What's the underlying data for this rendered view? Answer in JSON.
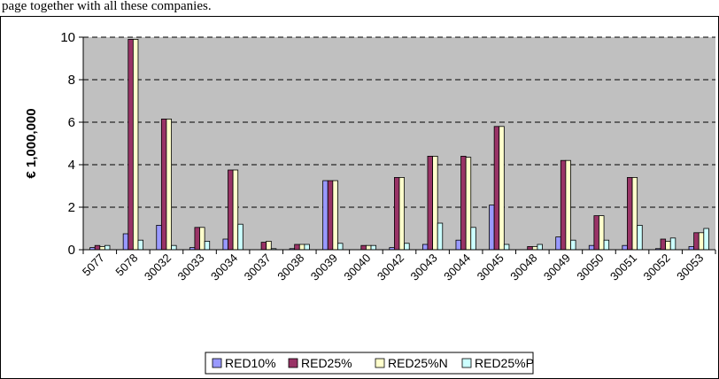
{
  "top_text": "page together with all these companies.",
  "chart_data": {
    "type": "bar",
    "title": "",
    "xlabel": "",
    "ylabel": "€ 1,000,000",
    "ylim": [
      0,
      10
    ],
    "yticks": [
      0,
      2,
      4,
      6,
      8,
      10
    ],
    "grid": true,
    "legend_position": "bottom",
    "categories": [
      "5077",
      "5078",
      "30032",
      "30033",
      "30034",
      "30037",
      "30038",
      "30039",
      "30040",
      "30042",
      "30043",
      "30044",
      "30045",
      "30048",
      "30049",
      "30050",
      "30051",
      "30052",
      "30053"
    ],
    "series": [
      {
        "name": "RED10%",
        "color": "#9999ff",
        "values": [
          0.1,
          0.75,
          1.15,
          0.1,
          0.5,
          0.0,
          0.05,
          3.25,
          0.0,
          0.1,
          0.25,
          0.45,
          2.1,
          0.0,
          0.6,
          0.2,
          0.2,
          0.05,
          0.15
        ]
      },
      {
        "name": "RED25%",
        "color": "#993366",
        "values": [
          0.2,
          9.9,
          6.15,
          1.05,
          3.75,
          0.35,
          0.25,
          3.25,
          0.2,
          3.4,
          4.4,
          4.4,
          5.8,
          0.15,
          4.2,
          1.6,
          3.4,
          0.5,
          0.8
        ]
      },
      {
        "name": "RED25%N",
        "color": "#ffffcc",
        "values": [
          0.15,
          9.9,
          6.15,
          1.05,
          3.75,
          0.4,
          0.25,
          3.25,
          0.2,
          3.4,
          4.4,
          4.35,
          5.8,
          0.15,
          4.2,
          1.6,
          3.4,
          0.4,
          0.8
        ]
      },
      {
        "name": "RED25%P",
        "color": "#ccffff",
        "values": [
          0.2,
          0.45,
          0.2,
          0.4,
          1.2,
          0.05,
          0.25,
          0.3,
          0.2,
          0.3,
          1.25,
          1.05,
          0.25,
          0.25,
          0.45,
          0.45,
          1.15,
          0.55,
          1.0
        ]
      }
    ]
  }
}
